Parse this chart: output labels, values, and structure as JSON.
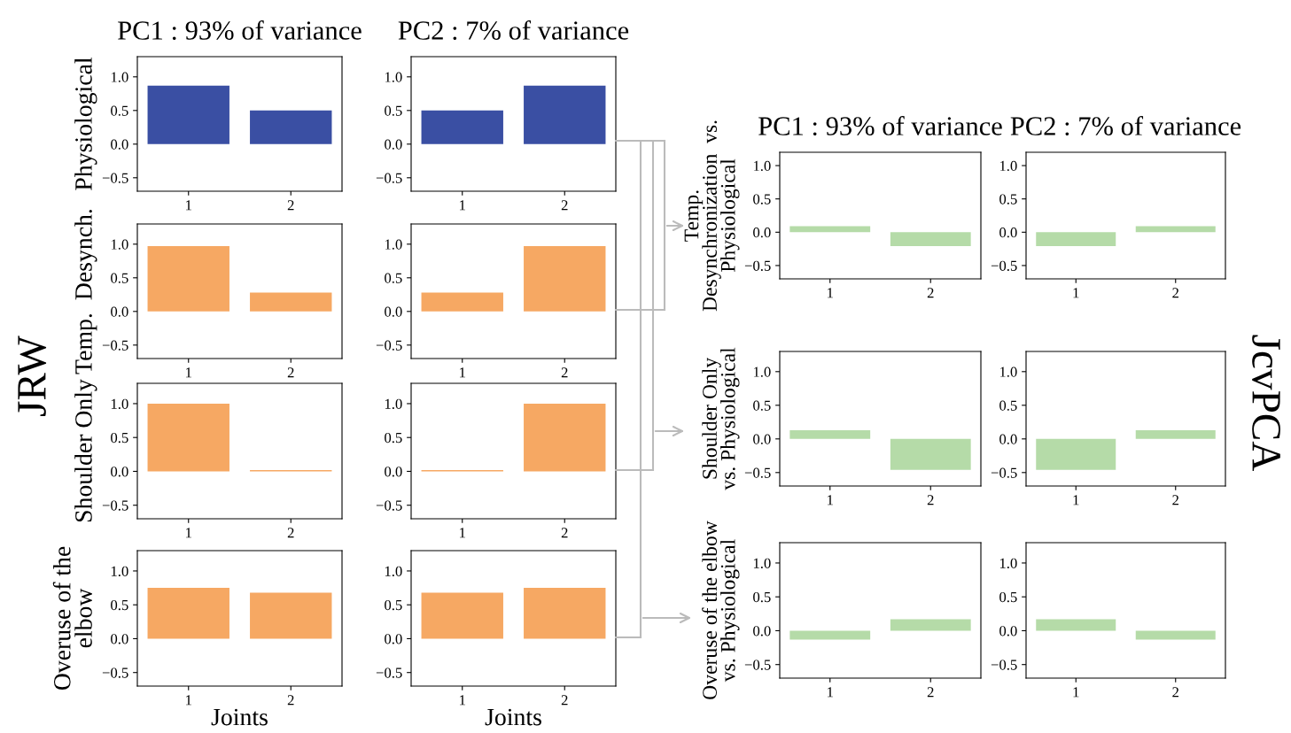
{
  "chart_data": [
    {
      "type": "bar",
      "title": "PC1 : 93% of variance",
      "ylabel": "Physiological",
      "categories": [
        "1",
        "2"
      ],
      "values": [
        0.87,
        0.5
      ],
      "color": "#3a4fa3",
      "ylim": [
        -0.7,
        1.3
      ],
      "yticks": [
        {
          "value": -0.5,
          "label": "−0.5"
        },
        {
          "value": 0,
          "label": "0.0"
        },
        {
          "value": 0.5,
          "label": "0.5"
        },
        {
          "value": 1,
          "label": "1.0"
        }
      ],
      "grid": false,
      "legend": false,
      "annotations": [
        "JRW"
      ]
    },
    {
      "type": "bar",
      "title": "PC2 : 7% of variance",
      "categories": [
        "1",
        "2"
      ],
      "values": [
        0.5,
        0.87
      ],
      "color": "#3a4fa3",
      "ylim": [
        -0.7,
        1.3
      ],
      "yticks": [
        {
          "value": -0.5,
          "label": "−0.5"
        },
        {
          "value": 0,
          "label": "0.0"
        },
        {
          "value": 0.5,
          "label": "0.5"
        },
        {
          "value": 1,
          "label": "1.0"
        }
      ],
      "grid": false,
      "legend": false
    },
    {
      "type": "bar",
      "ylabel": "Temp.  Desynch.",
      "categories": [
        "1",
        "2"
      ],
      "values": [
        0.97,
        0.28
      ],
      "color": "#f6a863",
      "ylim": [
        -0.7,
        1.3
      ],
      "yticks": [
        {
          "value": -0.5,
          "label": "−0.5"
        },
        {
          "value": 0,
          "label": "0.0"
        },
        {
          "value": 0.5,
          "label": "0.5"
        },
        {
          "value": 1,
          "label": "1.0"
        }
      ],
      "grid": false,
      "legend": false
    },
    {
      "type": "bar",
      "categories": [
        "1",
        "2"
      ],
      "values": [
        0.28,
        0.97
      ],
      "color": "#f6a863",
      "ylim": [
        -0.7,
        1.3
      ],
      "yticks": [
        {
          "value": -0.5,
          "label": "−0.5"
        },
        {
          "value": 0,
          "label": "0.0"
        },
        {
          "value": 0.5,
          "label": "0.5"
        },
        {
          "value": 1,
          "label": "1.0"
        }
      ],
      "grid": false,
      "legend": false
    },
    {
      "type": "bar",
      "ylabel": "Shoulder Only",
      "categories": [
        "1",
        "2"
      ],
      "values": [
        1.0,
        0.02
      ],
      "color": "#f6a863",
      "ylim": [
        -0.7,
        1.3
      ],
      "yticks": [
        {
          "value": -0.5,
          "label": "−0.5"
        },
        {
          "value": 0,
          "label": "0.0"
        },
        {
          "value": 0.5,
          "label": "0.5"
        },
        {
          "value": 1,
          "label": "1.0"
        }
      ],
      "grid": false,
      "legend": false
    },
    {
      "type": "bar",
      "categories": [
        "1",
        "2"
      ],
      "values": [
        0.02,
        1.0
      ],
      "color": "#f6a863",
      "ylim": [
        -0.7,
        1.3
      ],
      "yticks": [
        {
          "value": -0.5,
          "label": "−0.5"
        },
        {
          "value": 0,
          "label": "0.0"
        },
        {
          "value": 0.5,
          "label": "0.5"
        },
        {
          "value": 1,
          "label": "1.0"
        }
      ],
      "grid": false,
      "legend": false
    },
    {
      "type": "bar",
      "ylabel": "Overuse of the\nelbow",
      "xlabel": "Joints",
      "categories": [
        "1",
        "2"
      ],
      "values": [
        0.75,
        0.68
      ],
      "color": "#f6a863",
      "ylim": [
        -0.7,
        1.3
      ],
      "yticks": [
        {
          "value": -0.5,
          "label": "−0.5"
        },
        {
          "value": 0,
          "label": "0.0"
        },
        {
          "value": 0.5,
          "label": "0.5"
        },
        {
          "value": 1,
          "label": "1.0"
        }
      ],
      "grid": false,
      "legend": false
    },
    {
      "type": "bar",
      "xlabel": "Joints",
      "categories": [
        "1",
        "2"
      ],
      "values": [
        0.68,
        0.75
      ],
      "color": "#f6a863",
      "ylim": [
        -0.7,
        1.3
      ],
      "yticks": [
        {
          "value": -0.5,
          "label": "−0.5"
        },
        {
          "value": 0,
          "label": "0.0"
        },
        {
          "value": 0.5,
          "label": "0.5"
        },
        {
          "value": 1,
          "label": "1.0"
        }
      ],
      "grid": false,
      "legend": false
    },
    {
      "type": "bar",
      "title": "PC1 : 93% of variance",
      "ylabel": "Temp.\nDesynchronization  vs.\nPhysiological",
      "categories": [
        "1",
        "2"
      ],
      "values": [
        0.09,
        -0.21
      ],
      "color": "#b5dba8",
      "ylim": [
        -0.7,
        1.2
      ],
      "yticks": [
        {
          "value": -0.5,
          "label": "−0.5"
        },
        {
          "value": 0,
          "label": "0.0"
        },
        {
          "value": 0.5,
          "label": "0.5"
        },
        {
          "value": 1,
          "label": "1.0"
        }
      ],
      "grid": false,
      "legend": false,
      "annotations": [
        "JcvPCA"
      ]
    },
    {
      "type": "bar",
      "title": "PC2 : 7% of variance",
      "categories": [
        "1",
        "2"
      ],
      "values": [
        -0.21,
        0.09
      ],
      "color": "#b5dba8",
      "ylim": [
        -0.7,
        1.2
      ],
      "yticks": [
        {
          "value": -0.5,
          "label": "−0.5"
        },
        {
          "value": 0,
          "label": "0.0"
        },
        {
          "value": 0.5,
          "label": "0.5"
        },
        {
          "value": 1,
          "label": "1.0"
        }
      ],
      "grid": false,
      "legend": false
    },
    {
      "type": "bar",
      "ylabel": "Shoulder Only\nvs. Physiological",
      "categories": [
        "1",
        "2"
      ],
      "values": [
        0.13,
        -0.46
      ],
      "color": "#b5dba8",
      "ylim": [
        -0.7,
        1.3
      ],
      "yticks": [
        {
          "value": -0.5,
          "label": "−0.5"
        },
        {
          "value": 0,
          "label": "0.0"
        },
        {
          "value": 0.5,
          "label": "0.5"
        },
        {
          "value": 1,
          "label": "1.0"
        }
      ],
      "grid": false,
      "legend": false
    },
    {
      "type": "bar",
      "categories": [
        "1",
        "2"
      ],
      "values": [
        -0.46,
        0.13
      ],
      "color": "#b5dba8",
      "ylim": [
        -0.7,
        1.3
      ],
      "yticks": [
        {
          "value": -0.5,
          "label": "−0.5"
        },
        {
          "value": 0,
          "label": "0.0"
        },
        {
          "value": 0.5,
          "label": "0.5"
        },
        {
          "value": 1,
          "label": "1.0"
        }
      ],
      "grid": false,
      "legend": false
    },
    {
      "type": "bar",
      "ylabel": "Overuse of the elbow\nvs. Physiological",
      "categories": [
        "1",
        "2"
      ],
      "values": [
        -0.13,
        0.17
      ],
      "color": "#b5dba8",
      "ylim": [
        -0.7,
        1.3
      ],
      "yticks": [
        {
          "value": -0.5,
          "label": "−0.5"
        },
        {
          "value": 0,
          "label": "0.0"
        },
        {
          "value": 0.5,
          "label": "0.5"
        },
        {
          "value": 1,
          "label": "1.0"
        }
      ],
      "grid": false,
      "legend": false
    },
    {
      "type": "bar",
      "categories": [
        "1",
        "2"
      ],
      "values": [
        0.17,
        -0.13
      ],
      "color": "#b5dba8",
      "ylim": [
        -0.7,
        1.3
      ],
      "yticks": [
        {
          "value": -0.5,
          "label": "−0.5"
        },
        {
          "value": 0,
          "label": "0.0"
        },
        {
          "value": 0.5,
          "label": "0.5"
        },
        {
          "value": 1,
          "label": "1.0"
        }
      ],
      "grid": false,
      "legend": false
    }
  ]
}
